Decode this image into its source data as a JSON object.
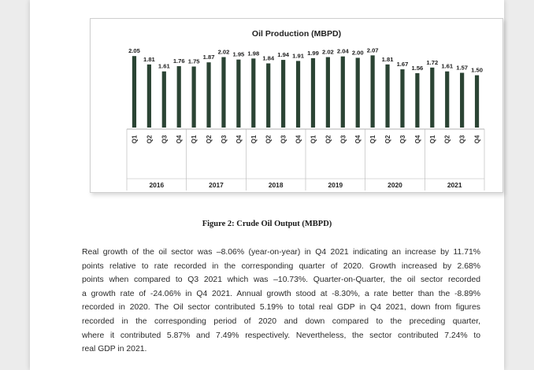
{
  "chart_data": {
    "type": "bar",
    "title": "Oil Production (MBPD)",
    "categories": [
      "Q1",
      "Q2",
      "Q3",
      "Q4",
      "Q1",
      "Q2",
      "Q3",
      "Q4",
      "Q1",
      "Q2",
      "Q3",
      "Q4",
      "Q1",
      "Q2",
      "Q3",
      "Q4",
      "Q1",
      "Q2",
      "Q3",
      "Q4",
      "Q1",
      "Q2",
      "Q3",
      "Q4"
    ],
    "groups": [
      "2016",
      "2017",
      "2018",
      "2019",
      "2020",
      "2021"
    ],
    "values": [
      2.05,
      1.81,
      1.61,
      1.76,
      1.75,
      1.87,
      2.02,
      1.95,
      1.98,
      1.84,
      1.94,
      1.91,
      1.99,
      2.02,
      2.04,
      2.0,
      2.07,
      1.81,
      1.67,
      1.56,
      1.72,
      1.61,
      1.57,
      1.5
    ],
    "value_labels": [
      "2.05",
      "1.81",
      "1.61",
      "1.76",
      "1.75",
      "1.87",
      "2.02",
      "1.95",
      "1.98",
      "1.84",
      "1.94",
      "1.91",
      "1.99",
      "2.02",
      "2.04",
      "2.00",
      "2.07",
      "1.81",
      "1.67",
      "1.56",
      "1.72",
      "1.61",
      "1.57",
      "1.50"
    ],
    "ylim": [
      0,
      2.1
    ],
    "bar_color": "#2b4434",
    "xlabel": "",
    "ylabel": ""
  },
  "figure_caption": "Figure 2: Crude Oil Output (MBPD)",
  "body_lines": [
    "Real growth of the oil sector was –8.06% (year-on-year) in Q4 2021 indicating an increase by 11.71%",
    "points relative to rate recorded in the corresponding quarter of 2020. Growth increased by 2.68%",
    "points when compared to Q3 2021 which was –10.73%. Quarter-on-Quarter, the oil sector recorded",
    "a growth rate of -24.06% in Q4 2021.  Annual growth stood at -8.30%, a rate better than the -8.89%",
    "recorded in 2020. The Oil sector contributed 5.19% to total real GDP in Q4 2021, down from figures",
    "recorded in the corresponding period of 2020 and down compared to the preceding quarter,",
    "where it contributed 5.87% and 7.49% respectively.  Nevertheless, the sector contributed 7.24% to",
    "real GDP in 2021."
  ]
}
